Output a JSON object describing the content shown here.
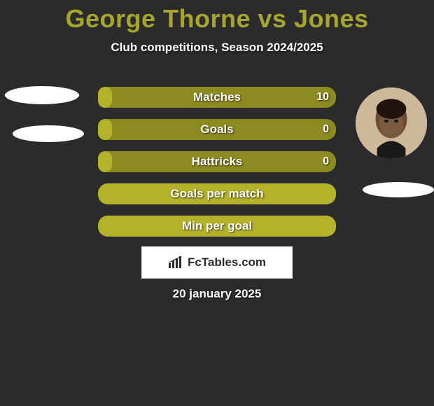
{
  "title": {
    "text": "George Thorne vs Jones",
    "color": "#a7a52f",
    "fontsize": 36
  },
  "subtitle": {
    "text": "Club competitions, Season 2024/2025",
    "color": "#ffffff",
    "fontsize": 17
  },
  "colors": {
    "background": "#2b2b2b",
    "bar_track": "#8d8a21",
    "bar_fill": "#b4b12b",
    "label_text": "#ffffff",
    "blob": "#ffffff"
  },
  "players": {
    "left": {
      "name": "George Thorne",
      "has_photo": false
    },
    "right": {
      "name": "Jones",
      "has_photo": true
    }
  },
  "bars": [
    {
      "label": "Matches",
      "left": "",
      "right": "10",
      "fill_pct": 6
    },
    {
      "label": "Goals",
      "left": "",
      "right": "0",
      "fill_pct": 6
    },
    {
      "label": "Hattricks",
      "left": "",
      "right": "0",
      "fill_pct": 6
    },
    {
      "label": "Goals per match",
      "left": "",
      "right": "",
      "fill_pct": 100
    },
    {
      "label": "Min per goal",
      "left": "",
      "right": "",
      "fill_pct": 100
    }
  ],
  "brand": {
    "text": "FcTables.com",
    "icon": "bars-icon"
  },
  "date": {
    "text": "20 january 2025"
  }
}
